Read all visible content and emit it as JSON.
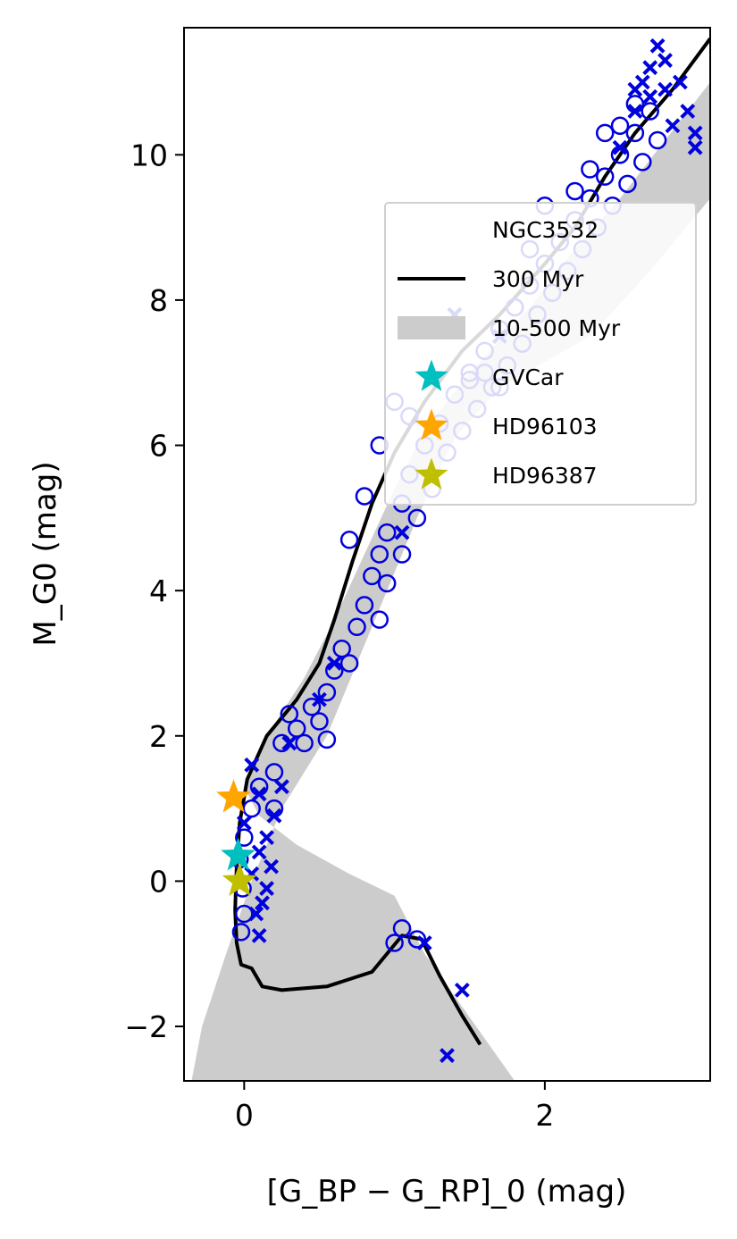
{
  "chart_data": {
    "type": "scatter",
    "xlabel": "[G_BP − G_RP]_0 (mag)",
    "ylabel": "M_G0 (mag)",
    "xlim": [
      -0.4,
      3.1
    ],
    "ylim": [
      11.75,
      -2.75
    ],
    "y_inverted": true,
    "grid": false,
    "legend_position": "right",
    "x_ticks": [
      {
        "value": 0,
        "label": "0"
      },
      {
        "value": 2,
        "label": "2"
      }
    ],
    "y_ticks": [
      {
        "value": -2,
        "label": "−2"
      },
      {
        "value": 0,
        "label": "0"
      },
      {
        "value": 2,
        "label": "2"
      },
      {
        "value": 4,
        "label": "4"
      },
      {
        "value": 6,
        "label": "6"
      },
      {
        "value": 8,
        "label": "8"
      },
      {
        "value": 10,
        "label": "10"
      }
    ],
    "legend": [
      {
        "label": "NGC3532",
        "kind": "none"
      },
      {
        "label": "300 Myr",
        "kind": "line",
        "color": "#000000"
      },
      {
        "label": "10-500 Myr",
        "kind": "patch",
        "color": "#cccccc"
      },
      {
        "label": "GVCar",
        "kind": "star",
        "color": "#00bfbf"
      },
      {
        "label": "HD96103",
        "kind": "star",
        "color": "#ffa500"
      },
      {
        "label": "HD96387",
        "kind": "star",
        "color": "#bfbf00"
      }
    ],
    "series": [
      {
        "name": "10-500 Myr",
        "kind": "band",
        "color": "#cccccc",
        "upper": [
          [
            -0.35,
            -2.75
          ],
          [
            1.8,
            -2.75
          ],
          [
            1.2,
            -1.0
          ],
          [
            1.0,
            -0.2
          ],
          [
            0.7,
            0.1
          ],
          [
            0.35,
            0.5
          ],
          [
            0.1,
            0.9
          ],
          [
            0.0,
            1.3
          ],
          [
            0.15,
            2.0
          ],
          [
            0.4,
            2.8
          ],
          [
            0.6,
            3.6
          ],
          [
            0.8,
            4.5
          ],
          [
            1.0,
            5.4
          ],
          [
            1.2,
            6.2
          ],
          [
            1.5,
            7.0
          ],
          [
            1.9,
            7.9
          ],
          [
            2.2,
            8.7
          ],
          [
            2.5,
            9.4
          ],
          [
            2.8,
            10.2
          ],
          [
            3.1,
            11.0
          ],
          [
            3.1,
            11.75
          ]
        ],
        "lower": [
          [
            3.1,
            11.75
          ],
          [
            3.1,
            9.4
          ],
          [
            2.9,
            8.9
          ],
          [
            2.7,
            8.4
          ],
          [
            2.3,
            7.5
          ],
          [
            1.7,
            6.8
          ],
          [
            1.4,
            6.1
          ],
          [
            1.15,
            5.0
          ],
          [
            0.95,
            4.0
          ],
          [
            0.75,
            3.0
          ],
          [
            0.55,
            2.0
          ],
          [
            0.25,
            1.0
          ],
          [
            0.05,
            0.0
          ],
          [
            -0.12,
            -1.0
          ],
          [
            -0.28,
            -2.0
          ],
          [
            -0.35,
            -2.75
          ]
        ]
      },
      {
        "name": "300 Myr",
        "kind": "line",
        "color": "#000000",
        "points": [
          [
            1.57,
            -2.25
          ],
          [
            1.45,
            -1.85
          ],
          [
            1.3,
            -1.3
          ],
          [
            1.18,
            -0.8
          ],
          [
            1.05,
            -0.75
          ],
          [
            0.85,
            -1.25
          ],
          [
            0.55,
            -1.45
          ],
          [
            0.25,
            -1.5
          ],
          [
            0.12,
            -1.45
          ],
          [
            0.05,
            -1.2
          ],
          [
            -0.02,
            -1.15
          ],
          [
            -0.05,
            -0.85
          ],
          [
            -0.06,
            -0.4
          ],
          [
            -0.05,
            0.2
          ],
          [
            -0.03,
            0.8
          ],
          [
            0.02,
            1.4
          ],
          [
            0.15,
            2.0
          ],
          [
            0.35,
            2.5
          ],
          [
            0.5,
            3.0
          ],
          [
            0.6,
            3.6
          ],
          [
            0.72,
            4.4
          ],
          [
            0.85,
            5.2
          ],
          [
            1.0,
            5.9
          ],
          [
            1.2,
            6.6
          ],
          [
            1.45,
            7.3
          ],
          [
            1.7,
            7.8
          ],
          [
            2.0,
            8.5
          ],
          [
            2.2,
            9.0
          ],
          [
            2.4,
            9.7
          ],
          [
            2.6,
            10.3
          ],
          [
            2.85,
            10.9
          ],
          [
            3.1,
            11.6
          ]
        ]
      },
      {
        "name": "",
        "kind": "circle",
        "color": "#0000dd",
        "points": [
          [
            -0.02,
            -0.7
          ],
          [
            0.0,
            -0.45
          ],
          [
            -0.01,
            -0.1
          ],
          [
            -0.03,
            0.3
          ],
          [
            0.0,
            0.6
          ],
          [
            0.05,
            1.0
          ],
          [
            0.1,
            1.3
          ],
          [
            0.2,
            1.5
          ],
          [
            0.25,
            1.9
          ],
          [
            0.35,
            2.1
          ],
          [
            0.45,
            2.4
          ],
          [
            0.55,
            2.6
          ],
          [
            0.6,
            2.9
          ],
          [
            0.65,
            3.2
          ],
          [
            0.75,
            3.5
          ],
          [
            0.8,
            3.8
          ],
          [
            0.85,
            4.2
          ],
          [
            0.9,
            4.5
          ],
          [
            0.95,
            4.8
          ],
          [
            1.05,
            5.2
          ],
          [
            1.1,
            5.6
          ],
          [
            1.2,
            6.0
          ],
          [
            1.3,
            6.3
          ],
          [
            1.4,
            6.7
          ],
          [
            1.5,
            7.0
          ],
          [
            1.6,
            7.3
          ],
          [
            1.7,
            7.6
          ],
          [
            1.8,
            7.9
          ],
          [
            1.9,
            8.2
          ],
          [
            2.0,
            8.5
          ],
          [
            2.1,
            8.8
          ],
          [
            2.2,
            9.1
          ],
          [
            2.3,
            9.4
          ],
          [
            2.4,
            9.7
          ],
          [
            2.5,
            10.0
          ],
          [
            2.6,
            10.3
          ],
          [
            2.7,
            10.6
          ],
          [
            0.2,
            1.0
          ],
          [
            0.4,
            1.9
          ],
          [
            0.5,
            2.2
          ],
          [
            0.3,
            2.3
          ],
          [
            0.55,
            1.95
          ],
          [
            0.7,
            3.0
          ],
          [
            0.9,
            3.6
          ],
          [
            0.95,
            4.1
          ],
          [
            1.05,
            4.5
          ],
          [
            1.15,
            5.0
          ],
          [
            1.25,
            5.4
          ],
          [
            1.35,
            5.9
          ],
          [
            1.45,
            6.2
          ],
          [
            1.55,
            6.5
          ],
          [
            1.65,
            6.8
          ],
          [
            1.75,
            7.1
          ],
          [
            1.85,
            7.4
          ],
          [
            1.95,
            7.8
          ],
          [
            2.05,
            8.1
          ],
          [
            2.15,
            8.4
          ],
          [
            2.25,
            8.7
          ],
          [
            2.35,
            9.0
          ],
          [
            2.45,
            9.3
          ],
          [
            2.55,
            9.6
          ],
          [
            2.65,
            9.9
          ],
          [
            2.75,
            10.2
          ],
          [
            1.5,
            6.9
          ],
          [
            1.7,
            6.8
          ],
          [
            1.6,
            7.0
          ],
          [
            1.1,
            6.4
          ],
          [
            1.0,
            6.6
          ],
          [
            0.9,
            6.0
          ],
          [
            0.8,
            5.3
          ],
          [
            0.7,
            4.7
          ],
          [
            1.8,
            7.9
          ],
          [
            2.2,
            9.5
          ],
          [
            2.0,
            9.3
          ],
          [
            1.9,
            8.7
          ],
          [
            2.3,
            9.8
          ],
          [
            2.5,
            10.4
          ],
          [
            2.6,
            10.7
          ],
          [
            2.4,
            10.3
          ],
          [
            1.0,
            -0.85
          ],
          [
            1.05,
            -0.65
          ],
          [
            1.15,
            -0.8
          ]
        ]
      },
      {
        "name": "",
        "kind": "cross",
        "color": "#0000dd",
        "points": [
          [
            1.35,
            -2.4
          ],
          [
            1.45,
            -1.5
          ],
          [
            1.2,
            -0.85
          ],
          [
            0.1,
            -0.75
          ],
          [
            0.08,
            -0.45
          ],
          [
            0.12,
            -0.3
          ],
          [
            0.15,
            -0.1
          ],
          [
            0.18,
            0.2
          ],
          [
            0.1,
            0.4
          ],
          [
            0.15,
            0.6
          ],
          [
            0.2,
            0.9
          ],
          [
            0.1,
            1.2
          ],
          [
            0.25,
            1.3
          ],
          [
            0.05,
            1.6
          ],
          [
            0.3,
            1.9
          ],
          [
            0.5,
            2.5
          ],
          [
            0.6,
            3.0
          ],
          [
            1.05,
            4.8
          ],
          [
            1.4,
            7.8
          ],
          [
            1.7,
            7.5
          ],
          [
            2.6,
            10.9
          ],
          [
            2.7,
            11.2
          ],
          [
            2.75,
            11.5
          ],
          [
            2.8,
            11.3
          ],
          [
            2.9,
            11.0
          ],
          [
            2.95,
            10.6
          ],
          [
            3.0,
            10.3
          ],
          [
            3.0,
            10.1
          ],
          [
            2.5,
            10.1
          ],
          [
            2.6,
            10.6
          ],
          [
            2.65,
            11.0
          ],
          [
            2.7,
            10.8
          ],
          [
            2.8,
            10.9
          ],
          [
            2.85,
            10.4
          ],
          [
            0.05,
            0.1
          ],
          [
            0.0,
            0.8
          ]
        ]
      },
      {
        "name": "GVCar",
        "kind": "star",
        "color": "#00bfbf",
        "points": [
          [
            -0.04,
            0.35
          ]
        ]
      },
      {
        "name": "HD96103",
        "kind": "star",
        "color": "#ffa500",
        "points": [
          [
            -0.07,
            1.15
          ]
        ]
      },
      {
        "name": "HD96387",
        "kind": "star",
        "color": "#bfbf00",
        "points": [
          [
            -0.03,
            0.0
          ]
        ]
      }
    ]
  }
}
